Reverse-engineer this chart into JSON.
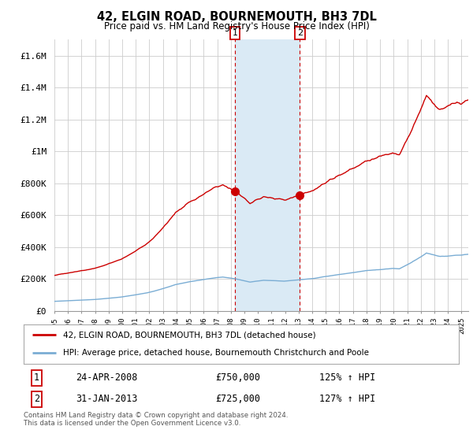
{
  "title": "42, ELGIN ROAD, BOURNEMOUTH, BH3 7DL",
  "subtitle": "Price paid vs. HM Land Registry's House Price Index (HPI)",
  "legend_line1": "42, ELGIN ROAD, BOURNEMOUTH, BH3 7DL (detached house)",
  "legend_line2": "HPI: Average price, detached house, Bournemouth Christchurch and Poole",
  "annotation1_date": "24-APR-2008",
  "annotation1_price": "£750,000",
  "annotation1_hpi": "125% ↑ HPI",
  "annotation2_date": "31-JAN-2013",
  "annotation2_price": "£725,000",
  "annotation2_hpi": "127% ↑ HPI",
  "footer": "Contains HM Land Registry data © Crown copyright and database right 2024.\nThis data is licensed under the Open Government Licence v3.0.",
  "red_color": "#cc0000",
  "blue_color": "#7aadd4",
  "shade_color": "#daeaf5",
  "background_color": "#ffffff",
  "grid_color": "#cccccc",
  "ylim": [
    0,
    1700000
  ],
  "yticks": [
    0,
    200000,
    400000,
    600000,
    800000,
    1000000,
    1200000,
    1400000,
    1600000
  ],
  "ytick_labels": [
    "£0",
    "£200K",
    "£400K",
    "£600K",
    "£800K",
    "£1M",
    "£1.2M",
    "£1.4M",
    "£1.6M"
  ],
  "xmin": 1995.0,
  "xmax": 2025.5,
  "sale1_x": 2008.31,
  "sale1_y": 750000,
  "sale2_x": 2013.08,
  "sale2_y": 725000
}
